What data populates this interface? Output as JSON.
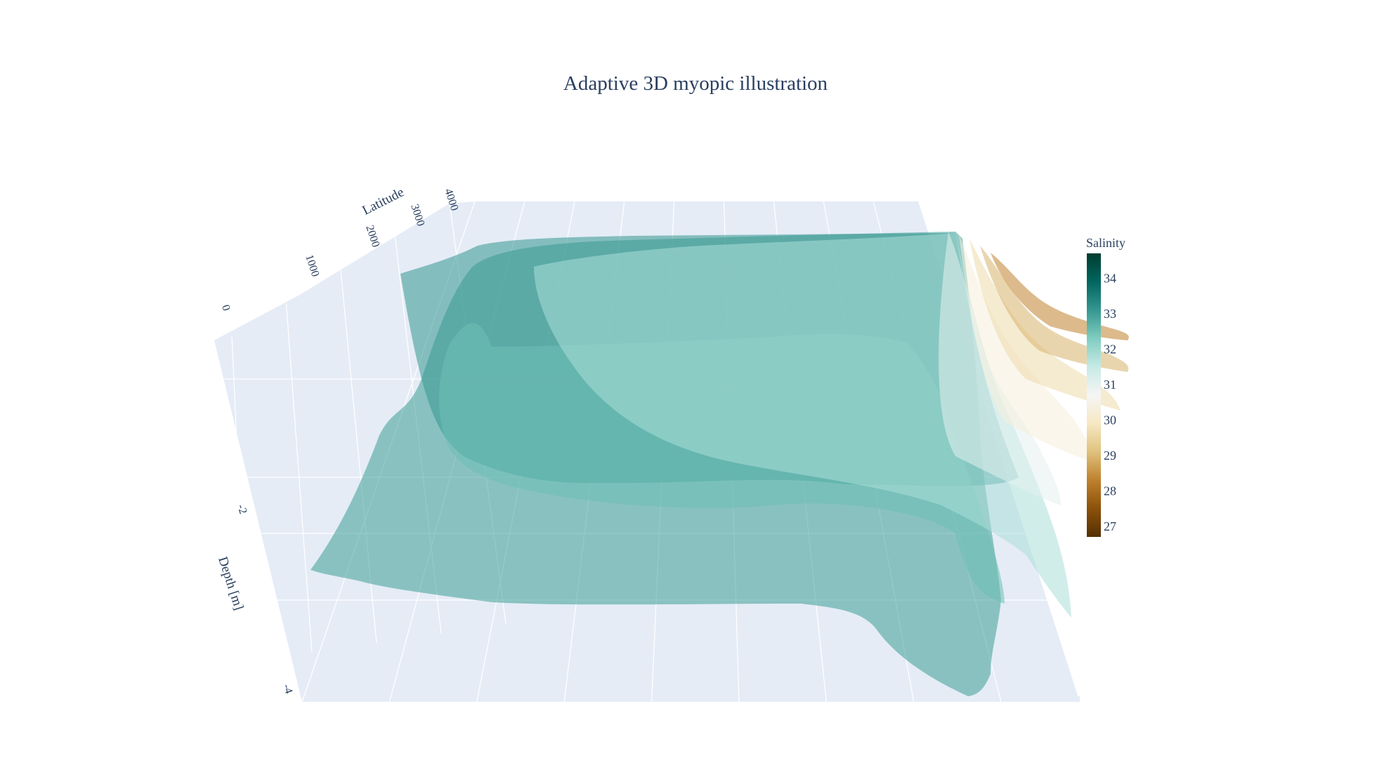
{
  "chart_data": {
    "type": "surface",
    "title": "Adaptive 3D myopic illustration",
    "axes": {
      "y": {
        "label": "Latitude",
        "ticks": [
          "0",
          "1000",
          "2000",
          "3000",
          "4000"
        ]
      },
      "z": {
        "label": "Depth [m]",
        "ticks": [
          "-2",
          "-4"
        ]
      }
    },
    "colorbar": {
      "title": "Salinity",
      "ticks": [
        "27",
        "28",
        "29",
        "30",
        "31",
        "32",
        "33",
        "34"
      ],
      "range": [
        26.7,
        34.7
      ],
      "colorscale": [
        "#543005",
        "#8c510a",
        "#bf812d",
        "#dfc27d",
        "#f6e8c3",
        "#f5f5f5",
        "#c7eae5",
        "#80cdc1",
        "#35978f",
        "#01665e",
        "#003c30"
      ]
    },
    "series": [
      {
        "salinity": 33.0,
        "opacity": 0.55
      },
      {
        "salinity": 33.1,
        "opacity": 0.55
      },
      {
        "salinity": 32.5,
        "opacity": 0.55
      },
      {
        "salinity": 31.8,
        "opacity": 0.55
      },
      {
        "salinity": 31.0,
        "opacity": 0.55
      },
      {
        "salinity": 30.3,
        "opacity": 0.55
      },
      {
        "salinity": 29.6,
        "opacity": 0.55
      },
      {
        "salinity": 28.9,
        "opacity": 0.55
      },
      {
        "salinity": 28.3,
        "opacity": 0.55
      }
    ],
    "grid": true,
    "background_color": "#e5ecf6"
  }
}
